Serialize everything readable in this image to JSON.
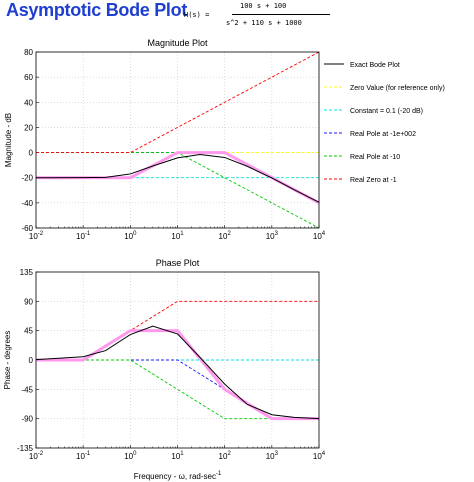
{
  "header": {
    "title": "Asymptotic Bode Plot",
    "tf_lhs": "H(s) =",
    "tf_num": "100 s + 100",
    "tf_den": "s^2 + 110 s + 1000"
  },
  "legend": {
    "entries": [
      {
        "label": "Exact Bode Plot",
        "color": "#000000",
        "dash": false
      },
      {
        "label": "Zero Value (for reference only)",
        "color": "#ffff00",
        "dash": true
      },
      {
        "label": "Constant = 0.1 (-20 dB)",
        "color": "#00e5e5",
        "dash": true
      },
      {
        "label": "Real Pole at -1e+002",
        "color": "#1a1aff",
        "dash": true
      },
      {
        "label": "Real Pole at -10",
        "color": "#00cc00",
        "dash": true
      },
      {
        "label": "Real Zero at -1",
        "color": "#ff0000",
        "dash": true
      }
    ]
  },
  "colors": {
    "exact": "#000000",
    "asymptotic": "#ff99ee",
    "zero": "#ffff00",
    "constant": "#00e5e5",
    "pole100": "#1a1aff",
    "pole10": "#00cc00",
    "zero1": "#ff0000"
  },
  "chart_data": [
    {
      "type": "line",
      "title": "Magnitude Plot",
      "xlabel": "",
      "ylabel": "Magnitude - dB",
      "xscale": "log",
      "xlim": [
        0.01,
        10000
      ],
      "ylim": [
        -60,
        80
      ],
      "yticks": [
        -60,
        -40,
        -20,
        0,
        20,
        40,
        60,
        80
      ],
      "yticklabels": [
        "-60",
        "-40",
        "-20",
        "0",
        "20",
        "40",
        "60",
        "80"
      ],
      "xtick_exponents": [
        "-2",
        "-1",
        "0",
        "1",
        "2",
        "3",
        "4"
      ],
      "xtick_base": "10",
      "series": [
        {
          "name": "Exact Bode Plot",
          "color": "#000000",
          "x": [
            0.01,
            0.1,
            0.3,
            1,
            3,
            10,
            30,
            100,
            300,
            1000,
            3000,
            10000
          ],
          "y": [
            -20,
            -19.9,
            -19.7,
            -17,
            -10.7,
            -4.2,
            -1.5,
            -3.9,
            -10.9,
            -20.2,
            -29.6,
            -39.6
          ]
        },
        {
          "name": "",
          "color": "#ff99ee",
          "x": [
            0.01,
            1,
            10,
            100,
            10000
          ],
          "y": [
            -20,
            -20,
            0,
            0,
            -40
          ]
        },
        {
          "name": "Zero Value (for reference only)",
          "color": "#ffff00",
          "x": [
            0.01,
            10000
          ],
          "y": [
            0,
            0
          ]
        },
        {
          "name": "Constant = 0.1 (-20 dB)",
          "color": "#00e5e5",
          "x": [
            0.01,
            10000
          ],
          "y": [
            -20,
            -20
          ]
        },
        {
          "name": "Real Pole at -1e+002",
          "color": "#1a1aff",
          "x": [
            0.01,
            100,
            10000
          ],
          "y": [
            0,
            0,
            -40
          ]
        },
        {
          "name": "Real Pole at -10",
          "color": "#00cc00",
          "x": [
            0.01,
            10,
            10000
          ],
          "y": [
            0,
            0,
            -60
          ]
        },
        {
          "name": "Real Zero at -1",
          "color": "#ff0000",
          "x": [
            0.01,
            1,
            10000
          ],
          "y": [
            0,
            0,
            80
          ]
        }
      ]
    },
    {
      "type": "line",
      "title": "Phase Plot",
      "xlabel": "Frequency - ω, rad-sec",
      "xlabel_sup": "-1",
      "ylabel": "Phase - degrees",
      "xscale": "log",
      "xlim": [
        0.01,
        10000
      ],
      "ylim": [
        -135,
        135
      ],
      "yticks": [
        -135,
        -90,
        -45,
        0,
        45,
        90,
        135
      ],
      "yticklabels": [
        "-135",
        "-90",
        "-45",
        "0",
        "45",
        "90",
        "135"
      ],
      "xtick_exponents": [
        "-2",
        "-1",
        "0",
        "1",
        "2",
        "3",
        "4"
      ],
      "xtick_base": "10",
      "series": [
        {
          "name": "Exact Bode Plot",
          "color": "#000000",
          "x": [
            0.01,
            0.1,
            0.3,
            1,
            3,
            10,
            30,
            100,
            300,
            1000,
            3000,
            10000
          ],
          "y": [
            0.5,
            5,
            14.5,
            39,
            52,
            40,
            4,
            -37,
            -68,
            -84,
            -88,
            -90
          ]
        },
        {
          "name": "",
          "color": "#ff99ee",
          "x": [
            0.01,
            0.1,
            1,
            10,
            100,
            1000,
            10000
          ],
          "y": [
            0,
            0,
            45,
            45,
            -45,
            -90,
            -90
          ]
        },
        {
          "name": "Zero Value (for reference only)",
          "color": "#ffff00",
          "x": [
            0.01,
            10000
          ],
          "y": [
            0,
            0
          ]
        },
        {
          "name": "Constant = 0.1 (-20 dB)",
          "color": "#00e5e5",
          "x": [
            0.01,
            10000
          ],
          "y": [
            0,
            0
          ]
        },
        {
          "name": "Real Pole at -1e+002",
          "color": "#1a1aff",
          "x": [
            0.01,
            10,
            1000,
            10000
          ],
          "y": [
            0,
            0,
            -90,
            -90
          ]
        },
        {
          "name": "Real Pole at -10",
          "color": "#00cc00",
          "x": [
            0.01,
            1,
            100,
            10000
          ],
          "y": [
            0,
            0,
            -90,
            -90
          ]
        },
        {
          "name": "Real Zero at -1",
          "color": "#ff0000",
          "x": [
            0.01,
            0.1,
            10,
            10000
          ],
          "y": [
            0,
            0,
            90,
            90
          ]
        }
      ]
    }
  ]
}
